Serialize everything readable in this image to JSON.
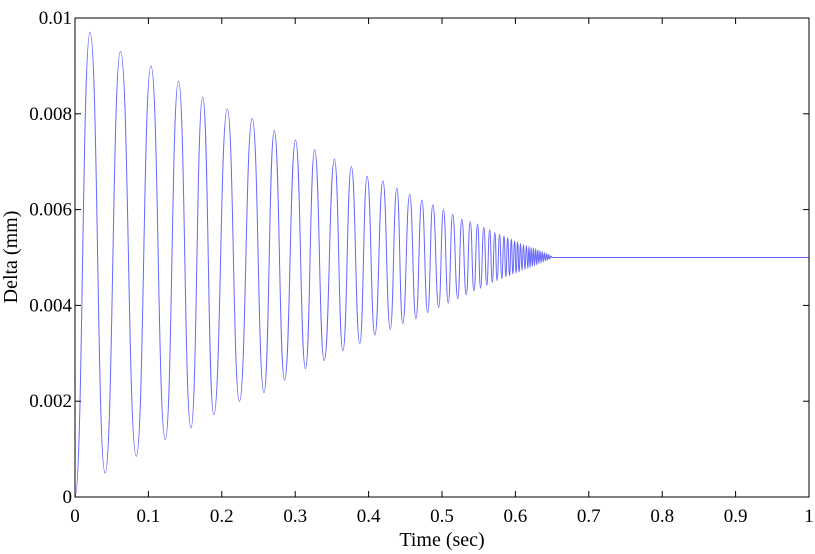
{
  "chart_data": {
    "type": "line",
    "xlabel": "Time (sec)",
    "ylabel": "Delta (mm)",
    "xlim": [
      0,
      1
    ],
    "ylim": [
      0,
      0.01
    ],
    "x_ticks": [
      "0",
      "0.1",
      "0.2",
      "0.3",
      "0.4",
      "0.5",
      "0.6",
      "0.7",
      "0.8",
      "0.9",
      "1"
    ],
    "y_ticks": [
      "0",
      "0.002",
      "0.004",
      "0.006",
      "0.008",
      "0.01"
    ],
    "grid": false,
    "line_color": "#0000ff",
    "series": [
      {
        "x": [
          0,
          0.0205,
          0.041,
          0.062,
          0.0835,
          0.1035,
          0.123,
          0.141,
          0.158,
          0.174,
          0.189,
          0.2075,
          0.224,
          0.2415,
          0.2575,
          0.2715,
          0.2855,
          0.3005,
          0.314,
          0.3265,
          0.3395,
          0.3535,
          0.365,
          0.3765,
          0.388,
          0.398,
          0.4085,
          0.4195,
          0.4295,
          0.4385,
          0.4465,
          0.456,
          0.4645,
          0.4725,
          0.4805,
          0.4875,
          0.4955,
          0.502,
          0.5085,
          0.5145,
          0.5215,
          0.527,
          0.533,
          0.5385,
          0.5435,
          0.5485,
          0.5525,
          0.557,
          0.561,
          0.565,
          0.5685,
          0.572,
          0.575,
          0.5785,
          0.5815,
          0.5845,
          0.587,
          0.5895,
          0.592,
          0.5945,
          0.5965,
          0.599,
          0.601,
          0.603,
          0.605,
          0.607,
          0.609,
          0.611,
          0.613,
          0.615,
          0.617,
          0.6185,
          0.62,
          0.6215,
          0.623,
          0.6245,
          0.626,
          0.6275,
          0.629,
          0.6305,
          0.632,
          0.6335,
          0.635,
          0.6365,
          0.638,
          0.6395,
          0.641,
          0.6425,
          0.644,
          0.6455,
          0.647,
          0.6485,
          0.65,
          0.66,
          1.0
        ],
        "values": [
          0,
          0.0097,
          0.0005,
          0.0093,
          0.00085,
          0.009,
          0.0012,
          0.00868,
          0.00144,
          0.00835,
          0.00172,
          0.0081,
          0.002,
          0.0079,
          0.00218,
          0.00765,
          0.00244,
          0.00745,
          0.00268,
          0.00725,
          0.00285,
          0.00705,
          0.00305,
          0.0069,
          0.0032,
          0.0067,
          0.00338,
          0.0066,
          0.0035,
          0.00645,
          0.00362,
          0.00632,
          0.00372,
          0.0062,
          0.00385,
          0.0061,
          0.00396,
          0.006,
          0.00405,
          0.0059,
          0.00414,
          0.0058,
          0.00422,
          0.00575,
          0.0043,
          0.0057,
          0.00436,
          0.00563,
          0.00442,
          0.00558,
          0.00448,
          0.00552,
          0.00452,
          0.00548,
          0.00456,
          0.00545,
          0.0046,
          0.00541,
          0.00462,
          0.00538,
          0.00466,
          0.00534,
          0.00468,
          0.00532,
          0.0047,
          0.00529,
          0.00473,
          0.00527,
          0.00475,
          0.00525,
          0.00477,
          0.00523,
          0.00479,
          0.00521,
          0.00481,
          0.0052,
          0.00483,
          0.00518,
          0.00485,
          0.00516,
          0.00487,
          0.00514,
          0.00489,
          0.00512,
          0.00491,
          0.0051,
          0.00493,
          0.00508,
          0.00495,
          0.00506,
          0.00497,
          0.00503,
          0.005,
          0.005,
          0.005
        ]
      }
    ]
  }
}
